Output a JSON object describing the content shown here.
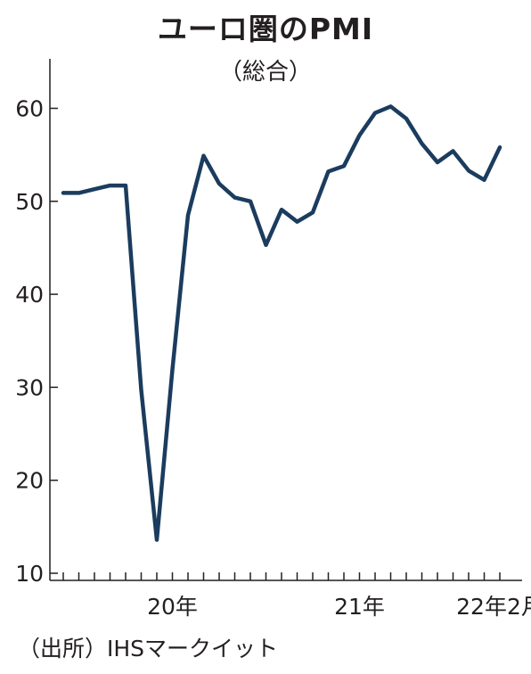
{
  "title": "ユーロ圏のPMI",
  "subtitle": "（総合）",
  "source": "（出所）IHSマークイット",
  "colors": {
    "line": "#1b3c5e",
    "axis": "#231f20"
  },
  "chart_data": {
    "type": "line",
    "title": "ユーロ圏のPMI",
    "subtitle": "（総合）",
    "ylim": [
      10,
      65
    ],
    "yticks": [
      10,
      20,
      30,
      40,
      50,
      60
    ],
    "ytick_labels": [
      "10",
      "20",
      "30",
      "40",
      "50",
      "60"
    ],
    "xtick_labels": [
      {
        "label": "20年",
        "index": 7
      },
      {
        "label": "21年",
        "index": 19
      },
      {
        "label": "22年2月",
        "index": 28
      }
    ],
    "grid": false,
    "series": [
      {
        "values": [
          50.9,
          50.9,
          51.3,
          51.7,
          51.7,
          29.7,
          13.6,
          31.9,
          48.5,
          54.9,
          51.9,
          50.4,
          50.0,
          45.3,
          49.1,
          47.8,
          48.8,
          53.2,
          53.8,
          57.1,
          59.5,
          60.2,
          58.9,
          56.2,
          54.2,
          55.4,
          53.3,
          52.3,
          55.8
        ]
      }
    ]
  }
}
